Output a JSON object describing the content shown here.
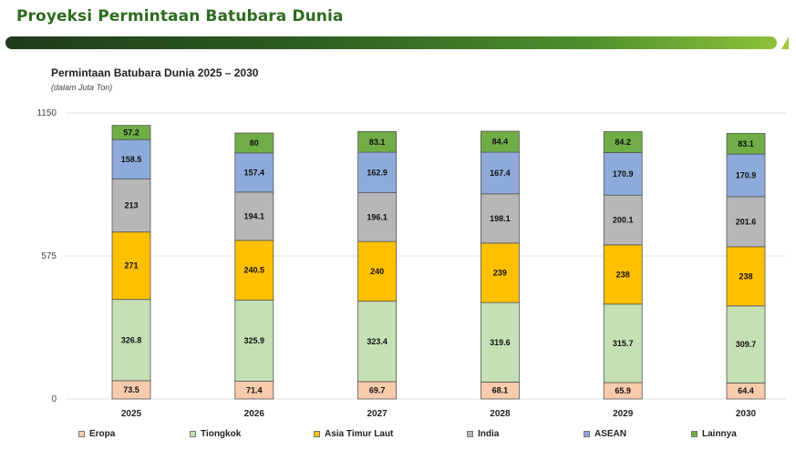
{
  "page": {
    "title": "Proyeksi Permintaan Batubara Dunia"
  },
  "chart_data": {
    "type": "bar",
    "stacked": true,
    "title": "Permintaan Batubara Dunia 2025 – 2030",
    "subtitle": "(dalam Juta Ton)",
    "xlabel": "",
    "ylabel": "",
    "ylim": [
      0,
      1150
    ],
    "yticks": [
      0,
      575,
      1150
    ],
    "grid": true,
    "legend_position": "bottom",
    "categories": [
      "2025",
      "2026",
      "2027",
      "2028",
      "2029",
      "2030"
    ],
    "series": [
      {
        "name": "Eropa",
        "color": "#f8cbad",
        "values": [
          73.5,
          71.4,
          69.7,
          68.1,
          65.9,
          64.4
        ]
      },
      {
        "name": "Tiongkok",
        "color": "#c5e0b4",
        "values": [
          326.8,
          325.9,
          323.4,
          319.6,
          315.7,
          309.7
        ]
      },
      {
        "name": "Asia Timur Laut",
        "color": "#ffc000",
        "values": [
          271,
          240.5,
          240,
          239,
          238,
          238
        ]
      },
      {
        "name": "India",
        "color": "#b7b7b7",
        "values": [
          213,
          194.1,
          196.1,
          198.1,
          200.1,
          201.6
        ]
      },
      {
        "name": "ASEAN",
        "color": "#8eaadb",
        "values": [
          158.5,
          157.4,
          162.9,
          167.4,
          170.9,
          170.9
        ]
      },
      {
        "name": "Lainnya",
        "color": "#70ad47",
        "values": [
          57.2,
          80,
          83.1,
          84.4,
          84.2,
          83.1
        ]
      }
    ]
  }
}
